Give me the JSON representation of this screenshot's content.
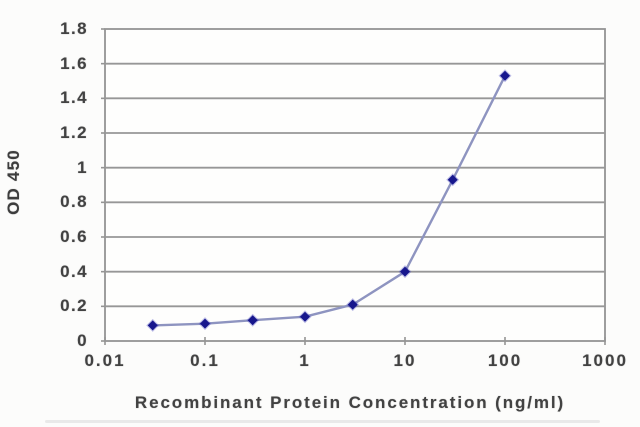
{
  "chart_data": {
    "type": "line",
    "title": "",
    "xlabel": "Recombinant Protein Concentration (ng/ml)",
    "ylabel": "OD 450",
    "x_scale": "log",
    "x": [
      0.03,
      0.1,
      0.3,
      1,
      3,
      10,
      30,
      100
    ],
    "y": [
      0.09,
      0.1,
      0.12,
      0.14,
      0.21,
      0.4,
      0.93,
      1.53
    ],
    "xlim": [
      0.01,
      1000
    ],
    "ylim": [
      0,
      1.8
    ],
    "x_tick_values": [
      0.01,
      0.1,
      1,
      10,
      100,
      1000
    ],
    "x_tick_labels": [
      "0.01",
      "0.1",
      "1",
      "10",
      "100",
      "1000"
    ],
    "y_tick_values": [
      0,
      0.2,
      0.4,
      0.6,
      0.8,
      1,
      1.2,
      1.4,
      1.6,
      1.8
    ],
    "y_tick_labels": [
      "0",
      "0.2",
      "0.4",
      "0.6",
      "0.8",
      "1",
      "1.2",
      "1.4",
      "1.6",
      "1.8"
    ],
    "grid": "horizontal",
    "legend": "none",
    "marker_shape": "diamond",
    "colors": {
      "line": "#8e94c0",
      "marker": "#17178d",
      "marker_halo": "#4444bd",
      "grid": "#979797",
      "border": "#949494",
      "text": "#424242",
      "plot_background": "#fefefd",
      "page_background": "#fcfcfb"
    }
  }
}
